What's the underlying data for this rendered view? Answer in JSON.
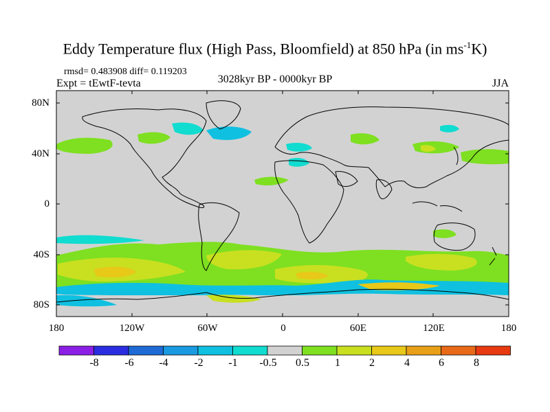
{
  "title": {
    "main": "Eddy Temperature flux (High Pass, Bloomfield) at 850 hPa (in ms",
    "sup": "-1",
    "tail": "K)"
  },
  "stats": "rmsd= 0.483908 diff= 0.119203",
  "experiment": "Expt = tEwtF-tevta",
  "period": "3028kyr BP - 0000kyr BP",
  "season": "JJA",
  "y_ticks": [
    "80N",
    "40N",
    "0",
    "40S",
    "80S"
  ],
  "x_ticks": [
    "180",
    "120W",
    "60W",
    "0",
    "60E",
    "120E",
    "180"
  ],
  "colorbar": {
    "labels": [
      "-8",
      "-6",
      "-4",
      "-2",
      "-1",
      "-0.5",
      "0.5",
      "1",
      "2",
      "4",
      "6",
      "8"
    ],
    "colors": [
      "#8c1fe6",
      "#2a2ee0",
      "#1e6bd6",
      "#1a9ae0",
      "#10c0e0",
      "#10dcd0",
      "#d2d2d2",
      "#7ee020",
      "#c8e020",
      "#e8c818",
      "#e8a018",
      "#e86a18",
      "#e83a10"
    ]
  },
  "map_colors": {
    "background": "#d2d2d2",
    "coast": "#000000"
  }
}
